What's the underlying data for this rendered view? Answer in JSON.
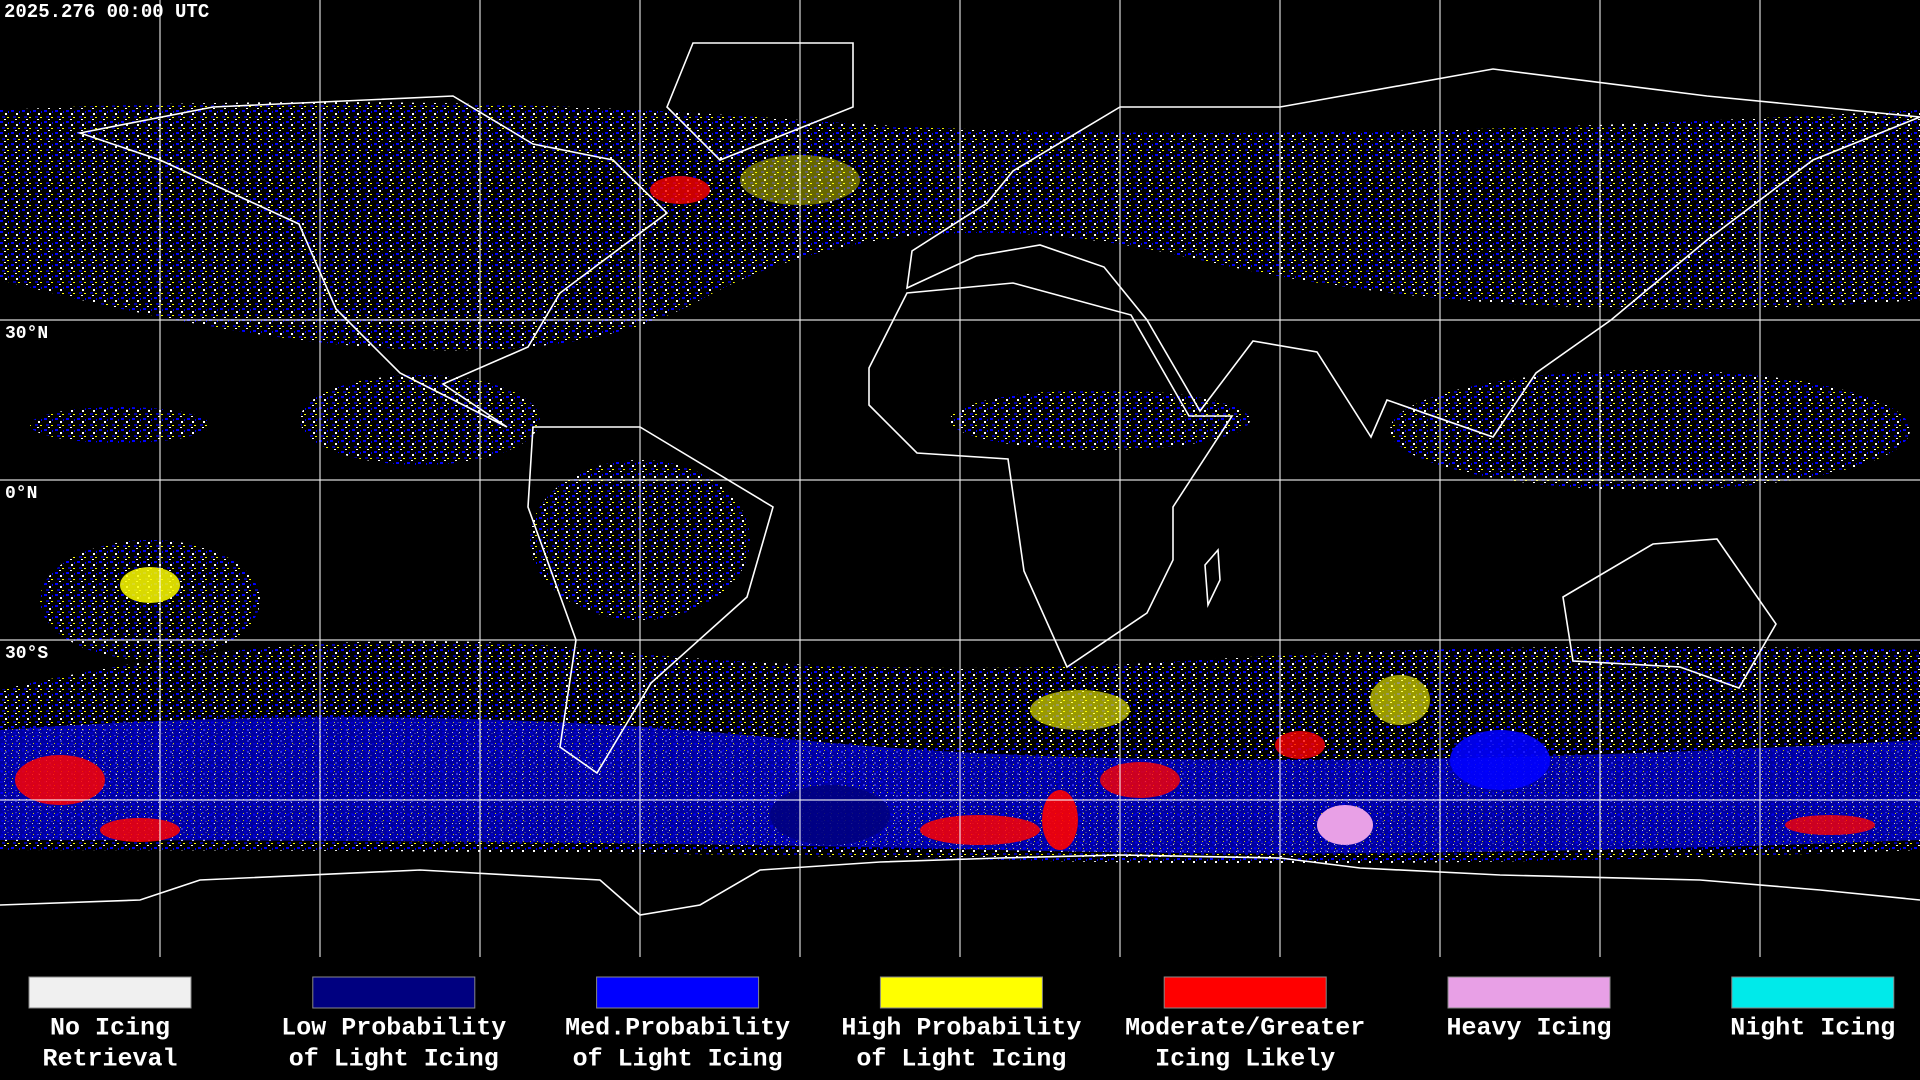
{
  "header": {
    "timestamp": "2025.276 00:00 UTC"
  },
  "map": {
    "latitude_labels": [
      "30°N",
      "0°N",
      "30°S"
    ]
  },
  "legend": {
    "items": [
      {
        "label": [
          "No Icing",
          "Retrieval"
        ],
        "color": "#f0f0f0"
      },
      {
        "label": [
          "Low Probability",
          "of Light Icing"
        ],
        "color": "#000080"
      },
      {
        "label": [
          "Med.Probability",
          "of Light Icing"
        ],
        "color": "#0000ff"
      },
      {
        "label": [
          "High Probability",
          "of Light Icing"
        ],
        "color": "#ffff00"
      },
      {
        "label": [
          "Moderate/Greater",
          "Icing Likely"
        ],
        "color": "#ff0000"
      },
      {
        "label": [
          "Heavy Icing"
        ],
        "color": "#e8a0e6"
      },
      {
        "label": [
          "Night Icing"
        ],
        "color": "#00eaea"
      }
    ]
  }
}
